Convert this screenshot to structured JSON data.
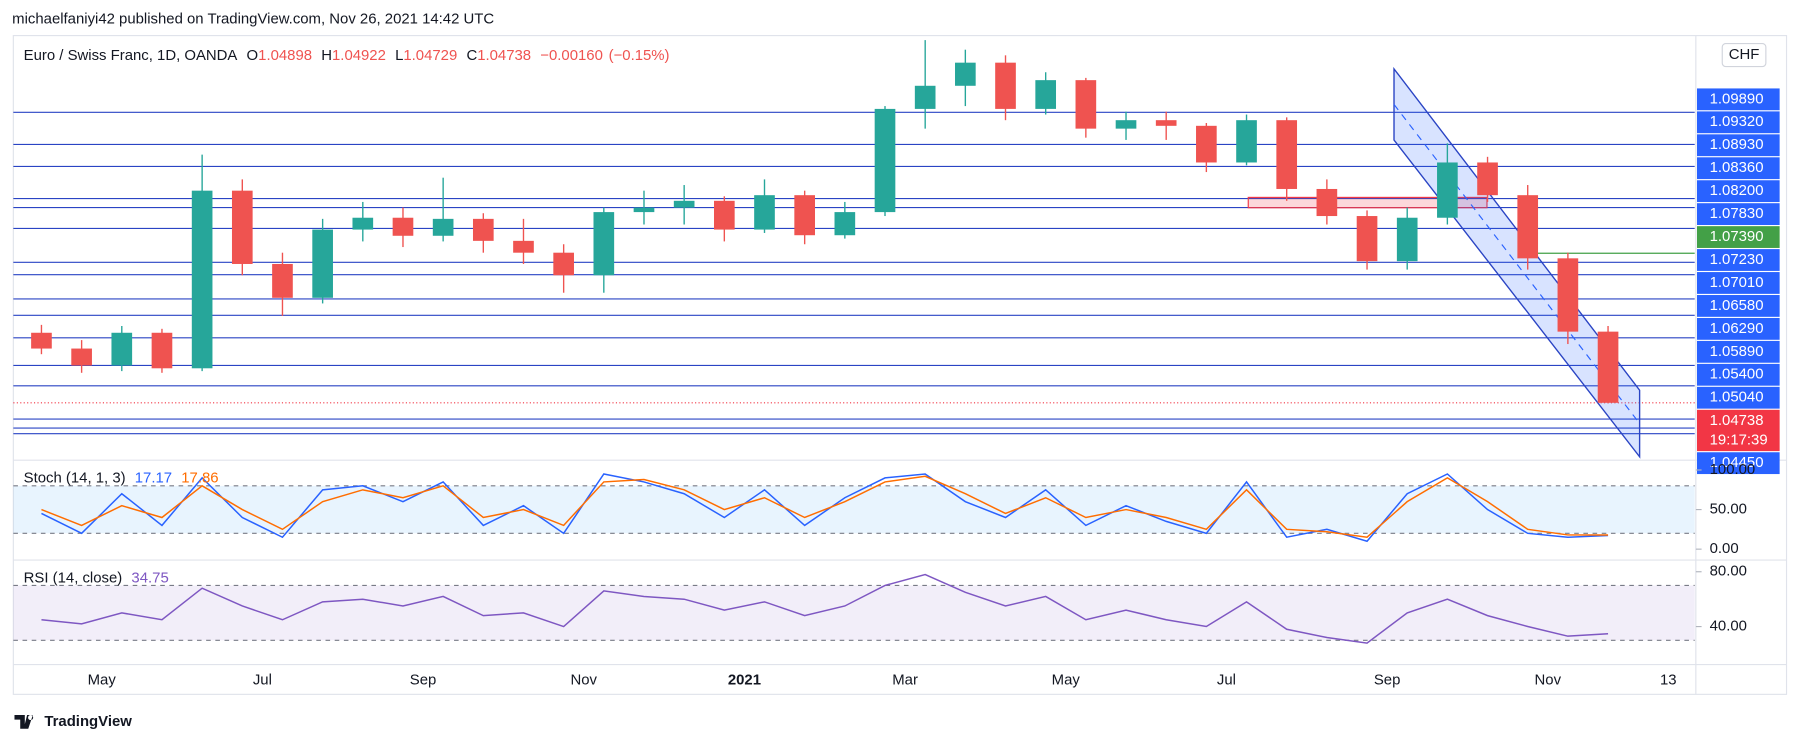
{
  "header": "michaelfaniyi42 published on TradingView.com, Nov 26, 2021 14:42 UTC",
  "footer": "TradingView",
  "chart_data": {
    "type": "candlestick",
    "legend": {
      "title": "Euro / Swiss Franc, 1D, OANDA",
      "items": [
        {
          "label": "O",
          "value": 1.04898
        },
        {
          "label": "H",
          "value": 1.04922
        },
        {
          "label": "L",
          "value": 1.04729
        },
        {
          "label": "C",
          "value": 1.04738
        }
      ],
      "change": {
        "value": -0.0016,
        "label": "−0.00160"
      },
      "change_pct": {
        "value": -0.15,
        "label": "(−0.15%)"
      }
    },
    "currency": "CHF",
    "categories": [
      null,
      null,
      "May",
      null,
      null,
      null,
      "Jul",
      null,
      null,
      null,
      "Sep",
      null,
      null,
      null,
      "Nov",
      null,
      null,
      null,
      "2021",
      null,
      null,
      null,
      "Mar",
      null,
      null,
      null,
      "May",
      null,
      null,
      null,
      "Jul",
      null,
      null,
      null,
      "Sep",
      null,
      null,
      null,
      "Nov",
      null,
      null,
      "13"
    ],
    "open": [
      1.0598,
      1.057,
      1.054,
      1.0598,
      1.0535,
      1.085,
      1.072,
      1.066,
      1.0781,
      1.0802,
      1.077,
      1.08,
      1.0761,
      1.074,
      1.07,
      1.0812,
      1.082,
      1.0832,
      1.0781,
      1.0842,
      1.0771,
      1.0812,
      1.0995,
      1.1036,
      1.1077,
      1.0995,
      1.1046,
      1.096,
      1.0975,
      1.0965,
      1.09,
      1.0975,
      1.0853,
      1.0805,
      1.0725,
      1.0802,
      1.09,
      1.0842,
      1.073,
      1.06,
      null,
      null
    ],
    "high": [
      1.0612,
      1.0585,
      1.061,
      1.0605,
      1.0914,
      1.087,
      1.074,
      1.08,
      1.083,
      1.082,
      1.0873,
      1.081,
      1.08,
      1.0755,
      1.082,
      1.085,
      1.086,
      1.084,
      1.087,
      1.085,
      1.083,
      1.1,
      1.1117,
      1.11,
      1.109,
      1.106,
      1.105,
      1.099,
      1.099,
      1.097,
      1.0985,
      1.098,
      1.087,
      1.0815,
      1.082,
      1.0934,
      1.091,
      1.086,
      1.074,
      1.061,
      null,
      null
    ],
    "low": [
      1.056,
      1.0527,
      1.053,
      1.0527,
      1.053,
      1.07,
      1.0628,
      1.065,
      1.076,
      1.075,
      1.076,
      1.074,
      1.072,
      1.0669,
      1.0669,
      1.079,
      1.079,
      1.076,
      1.0775,
      1.0755,
      1.0765,
      1.0805,
      1.096,
      1.1,
      1.0975,
      1.0985,
      1.0944,
      1.094,
      1.094,
      1.0883,
      1.0895,
      1.0832,
      1.079,
      1.071,
      1.071,
      1.079,
      1.083,
      1.071,
      1.0578,
      1.04729,
      null,
      null
    ],
    "close": [
      1.057,
      1.054,
      1.0598,
      1.0535,
      1.085,
      1.072,
      1.066,
      1.0781,
      1.0802,
      1.077,
      1.08,
      1.0761,
      1.074,
      1.07,
      1.0812,
      1.082,
      1.0832,
      1.0781,
      1.0842,
      1.0771,
      1.0812,
      1.0995,
      1.1036,
      1.1077,
      1.0995,
      1.1046,
      1.096,
      1.0975,
      1.0965,
      1.09,
      1.0975,
      1.0853,
      1.0805,
      1.0725,
      1.0802,
      1.09,
      1.0842,
      1.073,
      1.06,
      1.04738,
      null,
      null
    ],
    "up_color": "#26a69a",
    "down_color": "#ef5350",
    "ylim": [
      1.0374,
      1.1123
    ],
    "level_color": "#2a44c4",
    "price_labels": [
      {
        "value": 1.0989,
        "label": "1.09890"
      },
      {
        "value": 1.0932,
        "label": "1.09320"
      },
      {
        "value": 1.0893,
        "label": "1.08930"
      },
      {
        "value": 1.0836,
        "label": "1.08360"
      },
      {
        "value": 1.082,
        "label": "1.08200"
      },
      {
        "value": 1.0783,
        "label": "1.07830"
      },
      {
        "value": 1.0723,
        "label": "1.07230"
      },
      {
        "value": 1.0701,
        "label": "1.07010"
      },
      {
        "value": 1.0658,
        "label": "1.06580"
      },
      {
        "value": 1.0629,
        "label": "1.06290"
      },
      {
        "value": 1.0589,
        "label": "1.05890"
      },
      {
        "value": 1.054,
        "label": "1.05400"
      },
      {
        "value": 1.0504,
        "label": "1.05040"
      },
      {
        "value": 1.0445,
        "label": "1.04450"
      }
    ],
    "extra_levels": [
      1.0429,
      1.0419
    ],
    "green_label": {
      "value": 1.0739,
      "label": "1.07390",
      "color": "#43a047"
    },
    "current": {
      "value": 1.04738,
      "label": "1.04738",
      "timer": "19:17:39",
      "color": "#f23645"
    },
    "indicators": [
      {
        "type": "line",
        "title": "Stoch (14, 1, 3)",
        "ylim": [
          -8,
          108
        ],
        "bands": [
          80,
          20
        ],
        "band_color": "#2196f3",
        "yticks": [
          {
            "value": 100,
            "label": "100.00"
          },
          {
            "value": 50,
            "label": "50.00"
          },
          {
            "value": 0,
            "label": "0.00"
          }
        ],
        "series": [
          {
            "color": "#2962ff",
            "values": [
              45,
              20,
              70,
              30,
              90,
              40,
              15,
              75,
              80,
              60,
              85,
              30,
              55,
              20,
              95,
              85,
              70,
              40,
              75,
              30,
              65,
              90,
              95,
              60,
              40,
              75,
              30,
              55,
              35,
              20,
              85,
              15,
              25,
              10,
              70,
              95,
              50,
              20,
              15,
              17.17,
              null,
              null
            ]
          },
          {
            "color": "#ff6d00",
            "values": [
              50,
              30,
              55,
              40,
              80,
              50,
              25,
              60,
              75,
              65,
              80,
              40,
              50,
              30,
              85,
              88,
              75,
              50,
              65,
              40,
              60,
              85,
              92,
              70,
              45,
              65,
              40,
              50,
              40,
              25,
              75,
              25,
              22,
              15,
              60,
              90,
              60,
              25,
              18,
              17.86,
              null,
              null
            ]
          }
        ]
      },
      {
        "type": "line",
        "title": "RSI (14, close)",
        "ylim": [
          14,
          86
        ],
        "bands": [
          70,
          30
        ],
        "band_color": "#7e57c2",
        "yticks": [
          {
            "value": 80,
            "label": "80.00"
          },
          {
            "value": 40,
            "label": "40.00"
          }
        ],
        "series": [
          {
            "color": "#7e57c2",
            "values": [
              45,
              42,
              50,
              45,
              68,
              55,
              45,
              58,
              60,
              55,
              62,
              48,
              50,
              40,
              66,
              62,
              60,
              52,
              58,
              48,
              55,
              70,
              78,
              65,
              55,
              62,
              45,
              52,
              45,
              40,
              58,
              38,
              32,
              28,
              50,
              60,
              48,
              40,
              33,
              34.75,
              null,
              null
            ]
          }
        ]
      }
    ]
  }
}
